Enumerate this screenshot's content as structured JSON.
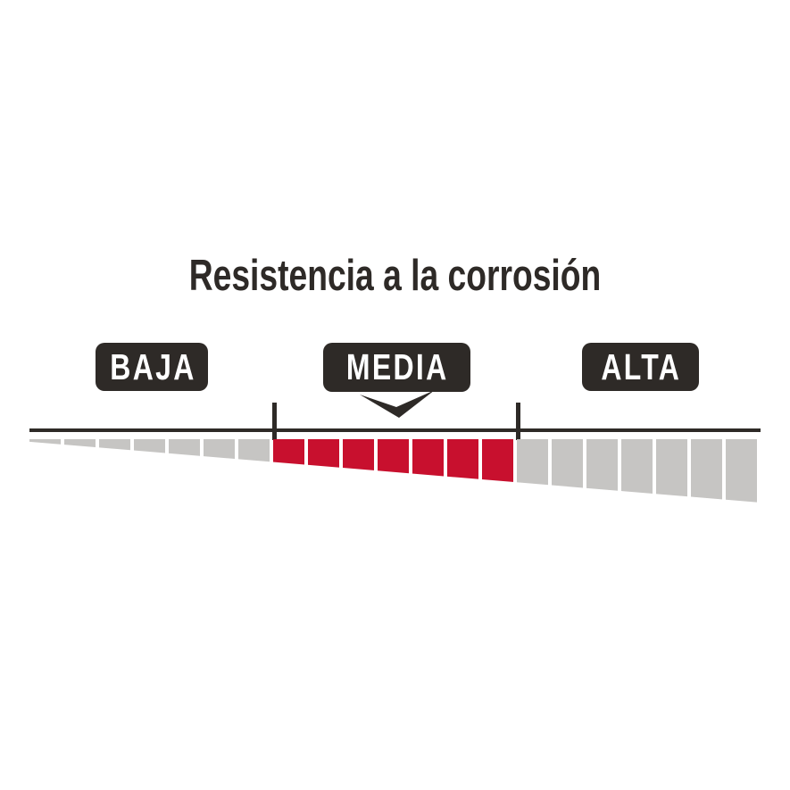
{
  "title": "Resistencia a la corrosión",
  "gauge": {
    "levels": [
      {
        "label": "BAJA",
        "selected": false,
        "segments": 7,
        "color": "#c6c5c3"
      },
      {
        "label": "MEDIA",
        "selected": true,
        "segments": 7,
        "color": "#c8102e"
      },
      {
        "label": "ALTA",
        "selected": false,
        "segments": 7,
        "color": "#c6c5c3"
      }
    ],
    "selected_level": "MEDIA",
    "total_segments": 21,
    "tick_count": 2
  },
  "icons": {
    "pointer": "arrow-down-pointer-icon"
  },
  "colors": {
    "ink": "#2e2a27",
    "red": "#c8102e",
    "gray": "#c6c5c3",
    "bg": "#ffffff"
  }
}
